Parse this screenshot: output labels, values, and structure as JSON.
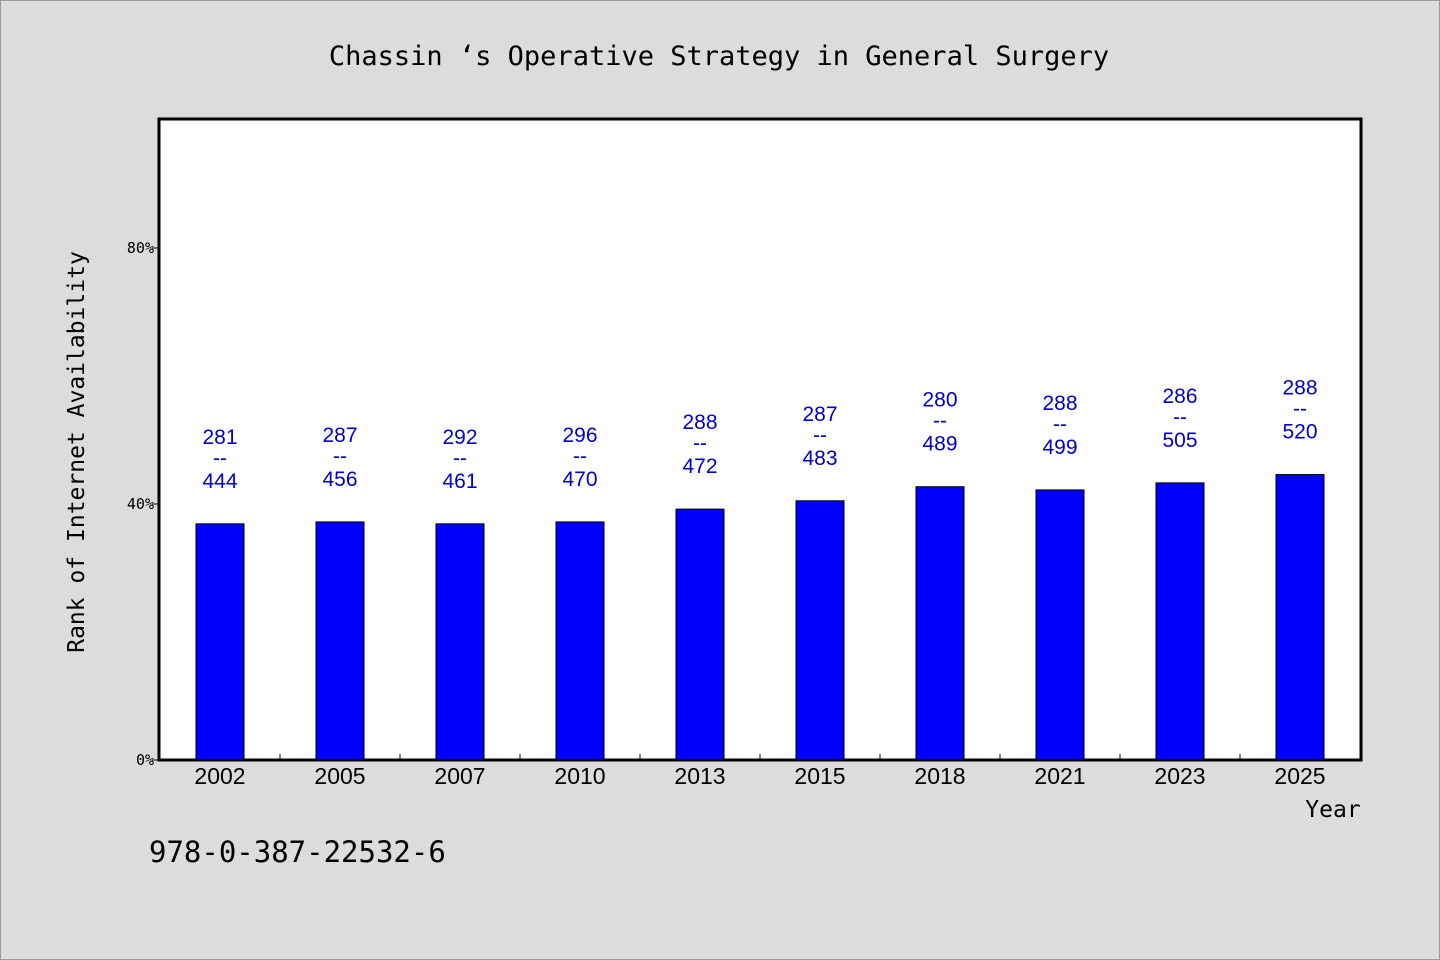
{
  "chart_data": {
    "type": "bar",
    "title": "Chassin ‘s Operative Strategy in General Surgery",
    "xlabel": "Year",
    "ylabel": "Rank of Internet Availability",
    "categories": [
      "2002",
      "2005",
      "2007",
      "2010",
      "2013",
      "2015",
      "2018",
      "2021",
      "2023",
      "2025"
    ],
    "values": [
      36.9,
      37.2,
      36.9,
      37.2,
      39.2,
      40.5,
      42.7,
      42.2,
      43.3,
      44.6
    ],
    "value_unit": "%",
    "bar_labels": [
      {
        "top": "281",
        "sep": "--",
        "bottom": "444"
      },
      {
        "top": "287",
        "sep": "--",
        "bottom": "456"
      },
      {
        "top": "292",
        "sep": "--",
        "bottom": "461"
      },
      {
        "top": "296",
        "sep": "--",
        "bottom": "470"
      },
      {
        "top": "288",
        "sep": "--",
        "bottom": "472"
      },
      {
        "top": "287",
        "sep": "--",
        "bottom": "483"
      },
      {
        "top": "280",
        "sep": "--",
        "bottom": "489"
      },
      {
        "top": "288",
        "sep": "--",
        "bottom": "499"
      },
      {
        "top": "286",
        "sep": "--",
        "bottom": "505"
      },
      {
        "top": "288",
        "sep": "--",
        "bottom": "520"
      }
    ],
    "ylim": [
      0,
      100
    ],
    "yticks": [
      0,
      40,
      80
    ],
    "ytick_labels": [
      "0%",
      "40%",
      "80%"
    ],
    "grid": false,
    "colors": {
      "bar": "#0000ff",
      "label": "#0000c8",
      "plot_bg": "#ffffff",
      "page_bg": "#dcdcdc"
    }
  },
  "footer": {
    "isbn": "978-0-387-22532-6"
  }
}
